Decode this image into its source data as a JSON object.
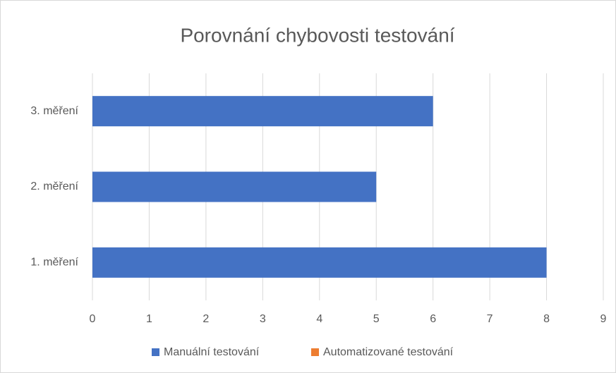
{
  "chart_data": {
    "type": "bar",
    "orientation": "horizontal",
    "title": "Porovnání chybovosti testování",
    "categories": [
      "1. měření",
      "2. měření",
      "3. měření"
    ],
    "series": [
      {
        "name": "Manuální testování",
        "color": "#4472c4",
        "values": [
          8,
          5,
          6
        ]
      },
      {
        "name": "Automatizované testování",
        "color": "#ed7d31",
        "values": [
          0,
          0,
          0
        ]
      }
    ],
    "xlim": [
      0,
      9
    ],
    "xticks": [
      0,
      1,
      2,
      3,
      4,
      5,
      6,
      7,
      8,
      9
    ],
    "grid": true,
    "legend": "bottom"
  }
}
